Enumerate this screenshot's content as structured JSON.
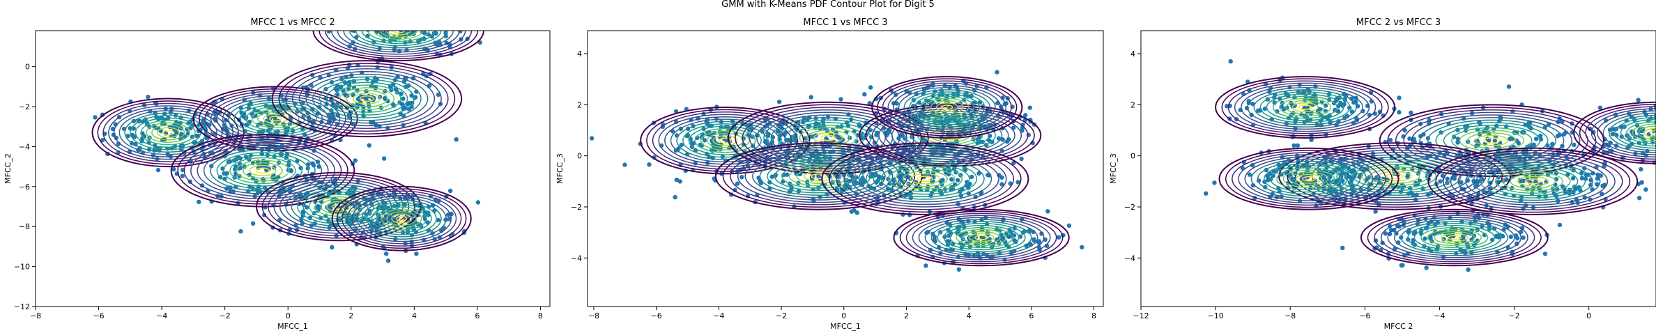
{
  "figure": {
    "title": "GMM with K-Means PDF Contour Plot for Digit 5"
  },
  "style": {
    "point_color": "#1f77b4",
    "contour_colormap": [
      "#440154",
      "#482878",
      "#3e4989",
      "#31688e",
      "#26828e",
      "#1f9e89",
      "#35b779",
      "#6ece58",
      "#b5de2b",
      "#fde725"
    ]
  },
  "chart_data": [
    {
      "type": "scatter",
      "overlay": "gmm-pdf-contour",
      "title": "MFCC 1 vs MFCC 2",
      "xlabel": "MFCC_1",
      "ylabel": "MFCC_2",
      "xlim": [
        -8.0,
        8.3
      ],
      "ylim": [
        -12.0,
        1.8
      ],
      "xticks": [
        -8,
        -6,
        -4,
        -2,
        0,
        2,
        4,
        6,
        8
      ],
      "yticks": [
        -12,
        -10,
        -8,
        -6,
        -4,
        -2,
        0
      ],
      "components": [
        {
          "mean": [
            -3.8,
            -3.3
          ],
          "std": [
            2.4,
            1.7
          ]
        },
        {
          "mean": [
            -0.4,
            -2.6
          ],
          "std": [
            2.6,
            1.6
          ]
        },
        {
          "mean": [
            2.5,
            -1.6
          ],
          "std": [
            3.0,
            1.9
          ]
        },
        {
          "mean": [
            -0.8,
            -5.2
          ],
          "std": [
            2.9,
            1.8
          ]
        },
        {
          "mean": [
            1.6,
            -7.0
          ],
          "std": [
            2.6,
            1.7
          ]
        },
        {
          "mean": [
            3.5,
            1.8
          ],
          "std": [
            2.7,
            1.5
          ]
        },
        {
          "mean": [
            3.6,
            -7.6
          ],
          "std": [
            2.2,
            1.6
          ]
        }
      ]
    },
    {
      "type": "scatter",
      "overlay": "gmm-pdf-contour",
      "title": "MFCC 1 vs MFCC 3",
      "xlabel": "MFCC_1",
      "ylabel": "MFCC_3",
      "xlim": [
        -8.2,
        8.3
      ],
      "ylim": [
        -5.9,
        4.9
      ],
      "xticks": [
        -8,
        -6,
        -4,
        -2,
        0,
        2,
        4,
        6,
        8
      ],
      "yticks": [
        -4,
        -2,
        0,
        2,
        4
      ],
      "components": [
        {
          "mean": [
            -3.8,
            0.6
          ],
          "std": [
            2.7,
            1.3
          ]
        },
        {
          "mean": [
            -0.5,
            0.7
          ],
          "std": [
            3.2,
            1.4
          ]
        },
        {
          "mean": [
            3.4,
            0.8
          ],
          "std": [
            2.9,
            1.2
          ]
        },
        {
          "mean": [
            -0.8,
            -0.8
          ],
          "std": [
            3.3,
            1.3
          ]
        },
        {
          "mean": [
            2.6,
            -0.9
          ],
          "std": [
            3.3,
            1.4
          ]
        },
        {
          "mean": [
            4.4,
            -3.2
          ],
          "std": [
            2.8,
            1.1
          ]
        },
        {
          "mean": [
            3.3,
            1.9
          ],
          "std": [
            2.4,
            1.2
          ]
        }
      ]
    },
    {
      "type": "scatter",
      "overlay": "gmm-pdf-contour",
      "title": "MFCC 2 vs MFCC 3",
      "xlabel": "MFCC 2",
      "ylabel": "MFCC_3",
      "xlim": [
        -12.0,
        1.8
      ],
      "ylim": [
        -5.9,
        4.9
      ],
      "xticks": [
        -12,
        -10,
        -8,
        -6,
        -4,
        -2,
        0
      ],
      "yticks": [
        -4,
        -2,
        0,
        2,
        4
      ],
      "components": [
        {
          "mean": [
            -7.6,
            1.9
          ],
          "std": [
            2.4,
            1.2
          ]
        },
        {
          "mean": [
            -2.6,
            0.6
          ],
          "std": [
            3.0,
            1.4
          ]
        },
        {
          "mean": [
            -5.2,
            -0.8
          ],
          "std": [
            3.1,
            1.3
          ]
        },
        {
          "mean": [
            -1.5,
            -1.0
          ],
          "std": [
            2.8,
            1.3
          ]
        },
        {
          "mean": [
            -3.6,
            -3.2
          ],
          "std": [
            2.5,
            1.1
          ]
        },
        {
          "mean": [
            -7.5,
            -0.9
          ],
          "std": [
            2.4,
            1.2
          ]
        },
        {
          "mean": [
            1.8,
            0.9
          ],
          "std": [
            2.2,
            1.2
          ]
        }
      ]
    }
  ]
}
